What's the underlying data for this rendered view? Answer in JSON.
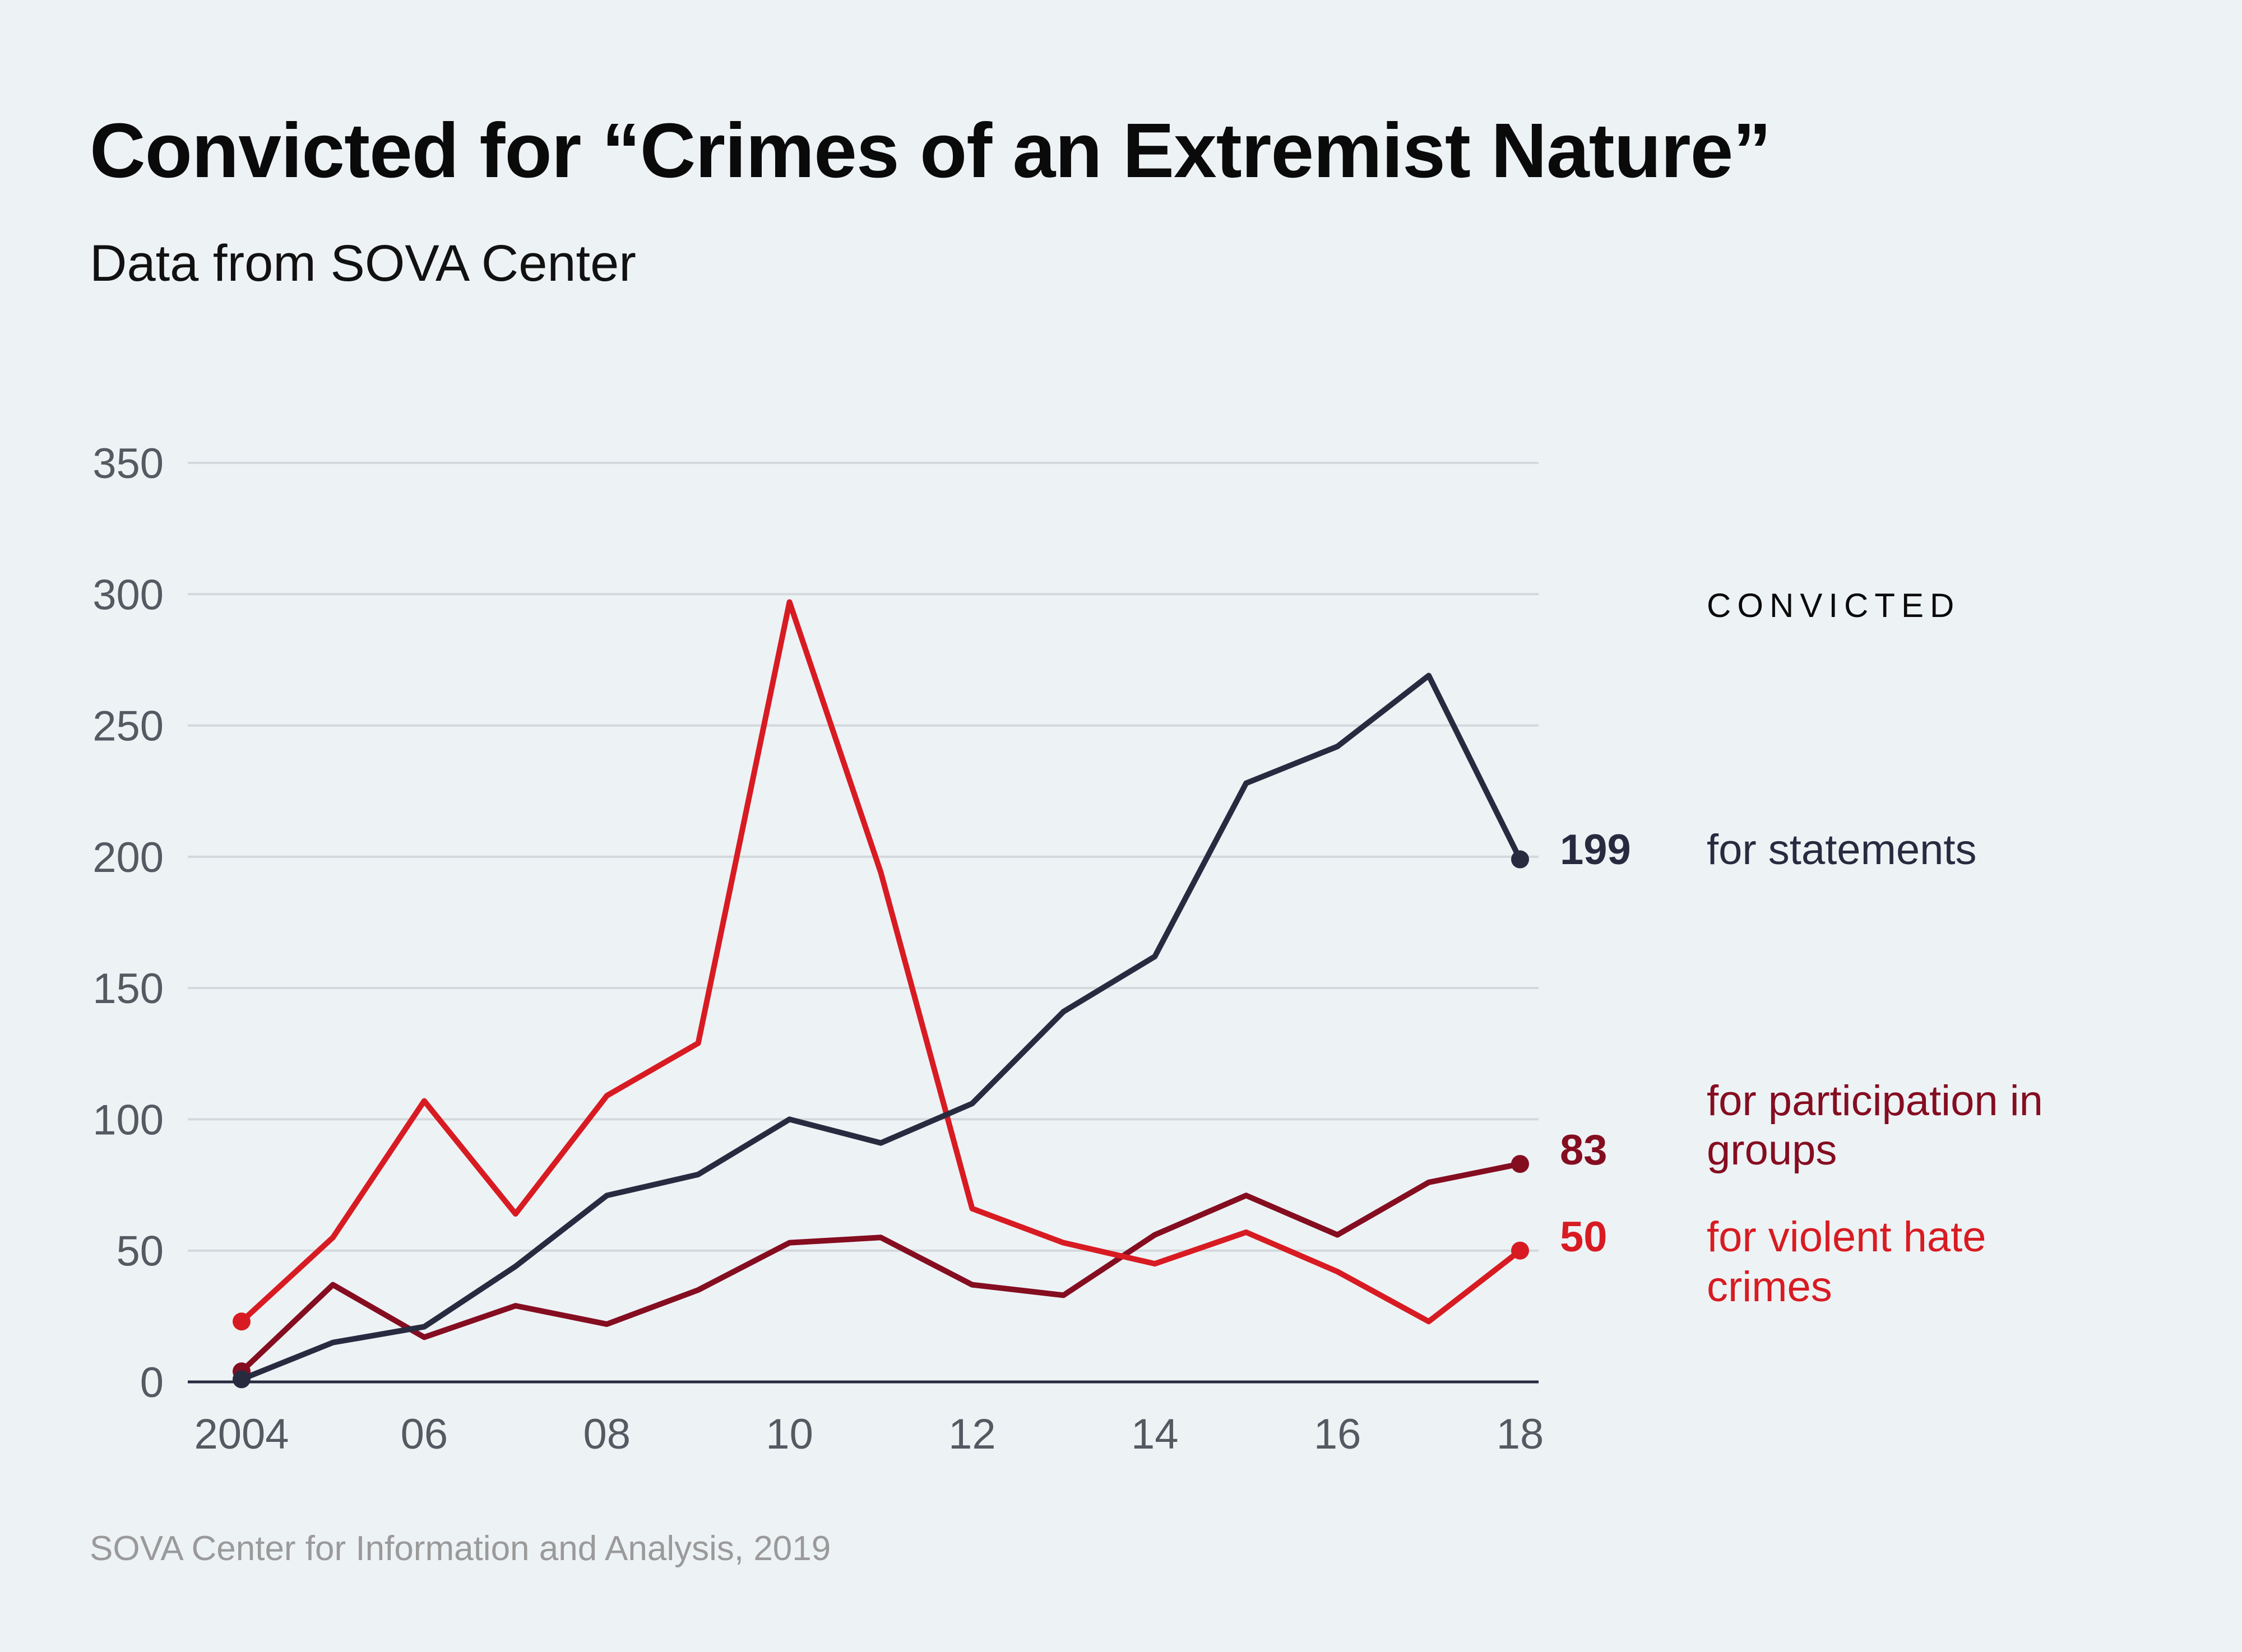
{
  "title": "Convicted for “Crimes of an Extremist Nature”",
  "subtitle": "Data from SOVA Center",
  "footer": "SOVA Center for Information and Analysis, 2019",
  "legend_heading": "CONVICTED",
  "colors": {
    "statements": "#282b40",
    "groups": "#850d20",
    "violent": "#d81b22",
    "grid": "#d3d8dc",
    "axis": "#282b40",
    "tick_text": "#545a61"
  },
  "chart_data": {
    "type": "line",
    "title": "Convicted for “Crimes of an Extremist Nature”",
    "subtitle": "Data from SOVA Center",
    "xlabel": "",
    "ylabel": "",
    "x": [
      2004,
      2005,
      2006,
      2007,
      2008,
      2009,
      2010,
      2011,
      2012,
      2013,
      2014,
      2015,
      2016,
      2017,
      2018
    ],
    "x_tick_values": [
      2004,
      2006,
      2008,
      2010,
      2012,
      2014,
      2016,
      2018
    ],
    "x_tick_labels": [
      "2004",
      "06",
      "08",
      "10",
      "12",
      "14",
      "16",
      "18"
    ],
    "y_ticks": [
      0,
      50,
      100,
      150,
      200,
      250,
      300,
      350
    ],
    "y_tick_labels": [
      "0",
      "50",
      "100",
      "150",
      "200",
      "250",
      "300",
      "350"
    ],
    "xlim": [
      2004,
      2018
    ],
    "ylim": [
      0,
      350
    ],
    "grid": true,
    "legend_title": "CONVICTED",
    "legend_placement": "right",
    "series": [
      {
        "key": "statements",
        "name": "for statements",
        "end_label": "199",
        "values": [
          1,
          15,
          21,
          44,
          71,
          79,
          100,
          91,
          106,
          141,
          162,
          228,
          242,
          269,
          199
        ]
      },
      {
        "key": "groups",
        "name": "for participation in groups",
        "name_lines": [
          "for participation in",
          "groups"
        ],
        "end_label": "83",
        "values": [
          4,
          37,
          17,
          29,
          22,
          35,
          53,
          55,
          37,
          33,
          56,
          71,
          56,
          76,
          83
        ]
      },
      {
        "key": "violent",
        "name": "for violent hate crimes",
        "name_lines": [
          "for violent hate",
          "crimes"
        ],
        "end_label": "50",
        "values": [
          23,
          55,
          107,
          64,
          109,
          129,
          297,
          194,
          66,
          53,
          45,
          57,
          42,
          23,
          50
        ]
      }
    ]
  }
}
